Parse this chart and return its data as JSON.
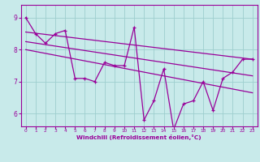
{
  "title": "",
  "xlabel": "Windchill (Refroidissement éolien,°C)",
  "background_color": "#c8eaea",
  "line_color": "#990099",
  "grid_color": "#9ecece",
  "x_ticks": [
    0,
    1,
    2,
    3,
    4,
    5,
    6,
    7,
    8,
    9,
    10,
    11,
    12,
    13,
    14,
    15,
    16,
    17,
    18,
    19,
    20,
    21,
    22,
    23
  ],
  "y_ticks": [
    6,
    7,
    8,
    9
  ],
  "ylim": [
    5.6,
    9.4
  ],
  "xlim": [
    -0.5,
    23.5
  ],
  "main_line": [
    9.0,
    8.5,
    8.2,
    8.5,
    8.6,
    7.1,
    7.1,
    7.0,
    7.6,
    7.5,
    7.5,
    8.7,
    5.8,
    6.4,
    7.4,
    5.5,
    6.3,
    6.4,
    7.0,
    6.1,
    7.1,
    7.3,
    7.7,
    7.7
  ],
  "upper_line_x": [
    0,
    23
  ],
  "upper_line_y": [
    8.55,
    7.7
  ],
  "lower_line_x": [
    0,
    23
  ],
  "lower_line_y": [
    8.0,
    6.65
  ],
  "mid_line_x": [
    0,
    23
  ],
  "mid_line_y": [
    8.25,
    7.18
  ]
}
